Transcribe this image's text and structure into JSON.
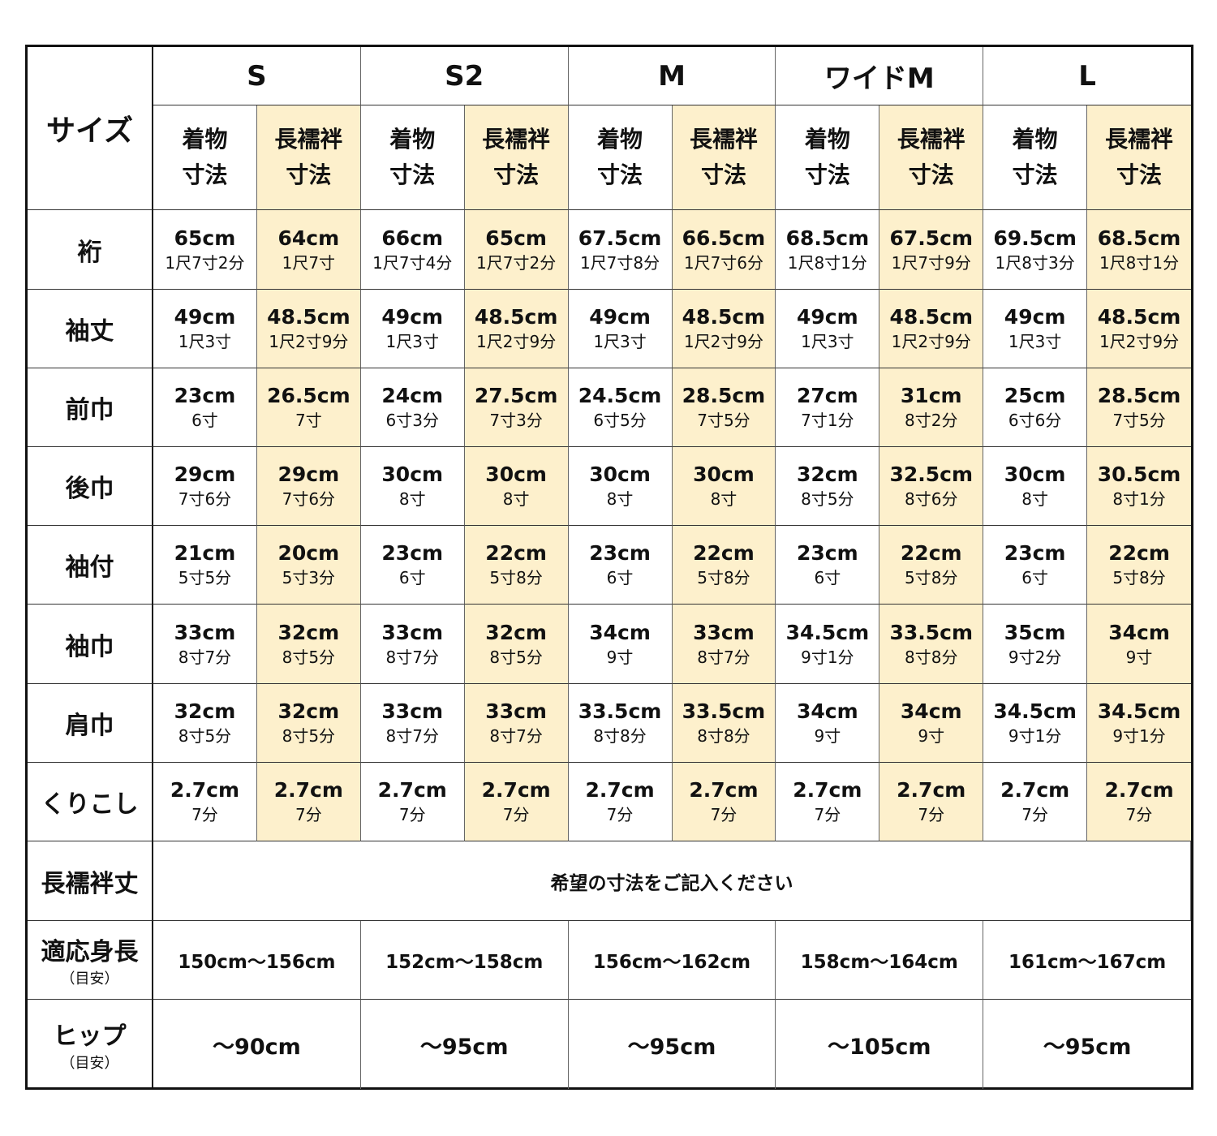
{
  "header": {
    "size_label": "サイズ",
    "sizes": [
      "S",
      "S2",
      "M",
      "ワイドM",
      "L"
    ],
    "sub_headers": [
      "着物\n寸法",
      "長襦袢\n寸法"
    ],
    "sub_header_lines": [
      [
        "着物",
        "寸法"
      ],
      [
        "長襦袢",
        "寸法"
      ]
    ]
  },
  "highlight_color": "#fdf0cc",
  "rows": [
    {
      "label": "裄",
      "cells": [
        [
          "65cm",
          "1尺7寸2分"
        ],
        [
          "64cm",
          "1尺7寸"
        ],
        [
          "66cm",
          "1尺7寸4分"
        ],
        [
          "65cm",
          "1尺7寸2分"
        ],
        [
          "67.5cm",
          "1尺7寸8分"
        ],
        [
          "66.5cm",
          "1尺7寸6分"
        ],
        [
          "68.5cm",
          "1尺8寸1分"
        ],
        [
          "67.5cm",
          "1尺7寸9分"
        ],
        [
          "69.5cm",
          "1尺8寸3分"
        ],
        [
          "68.5cm",
          "1尺8寸1分"
        ]
      ]
    },
    {
      "label": "袖丈",
      "cells": [
        [
          "49cm",
          "1尺3寸"
        ],
        [
          "48.5cm",
          "1尺2寸9分"
        ],
        [
          "49cm",
          "1尺3寸"
        ],
        [
          "48.5cm",
          "1尺2寸9分"
        ],
        [
          "49cm",
          "1尺3寸"
        ],
        [
          "48.5cm",
          "1尺2寸9分"
        ],
        [
          "49cm",
          "1尺3寸"
        ],
        [
          "48.5cm",
          "1尺2寸9分"
        ],
        [
          "49cm",
          "1尺3寸"
        ],
        [
          "48.5cm",
          "1尺2寸9分"
        ]
      ]
    },
    {
      "label": "前巾",
      "cells": [
        [
          "23cm",
          "6寸"
        ],
        [
          "26.5cm",
          "7寸"
        ],
        [
          "24cm",
          "6寸3分"
        ],
        [
          "27.5cm",
          "7寸3分"
        ],
        [
          "24.5cm",
          "6寸5分"
        ],
        [
          "28.5cm",
          "7寸5分"
        ],
        [
          "27cm",
          "7寸1分"
        ],
        [
          "31cm",
          "8寸2分"
        ],
        [
          "25cm",
          "6寸6分"
        ],
        [
          "28.5cm",
          "7寸5分"
        ]
      ]
    },
    {
      "label": "後巾",
      "cells": [
        [
          "29cm",
          "7寸6分"
        ],
        [
          "29cm",
          "7寸6分"
        ],
        [
          "30cm",
          "8寸"
        ],
        [
          "30cm",
          "8寸"
        ],
        [
          "30cm",
          "8寸"
        ],
        [
          "30cm",
          "8寸"
        ],
        [
          "32cm",
          "8寸5分"
        ],
        [
          "32.5cm",
          "8寸6分"
        ],
        [
          "30cm",
          "8寸"
        ],
        [
          "30.5cm",
          "8寸1分"
        ]
      ]
    },
    {
      "label": "袖付",
      "cells": [
        [
          "21cm",
          "5寸5分"
        ],
        [
          "20cm",
          "5寸3分"
        ],
        [
          "23cm",
          "6寸"
        ],
        [
          "22cm",
          "5寸8分"
        ],
        [
          "23cm",
          "6寸"
        ],
        [
          "22cm",
          "5寸8分"
        ],
        [
          "23cm",
          "6寸"
        ],
        [
          "22cm",
          "5寸8分"
        ],
        [
          "23cm",
          "6寸"
        ],
        [
          "22cm",
          "5寸8分"
        ]
      ]
    },
    {
      "label": "袖巾",
      "cells": [
        [
          "33cm",
          "8寸7分"
        ],
        [
          "32cm",
          "8寸5分"
        ],
        [
          "33cm",
          "8寸7分"
        ],
        [
          "32cm",
          "8寸5分"
        ],
        [
          "34cm",
          "9寸"
        ],
        [
          "33cm",
          "8寸7分"
        ],
        [
          "34.5cm",
          "9寸1分"
        ],
        [
          "33.5cm",
          "8寸8分"
        ],
        [
          "35cm",
          "9寸2分"
        ],
        [
          "34cm",
          "9寸"
        ]
      ]
    },
    {
      "label": "肩巾",
      "cells": [
        [
          "32cm",
          "8寸5分"
        ],
        [
          "32cm",
          "8寸5分"
        ],
        [
          "33cm",
          "8寸7分"
        ],
        [
          "33cm",
          "8寸7分"
        ],
        [
          "33.5cm",
          "8寸8分"
        ],
        [
          "33.5cm",
          "8寸8分"
        ],
        [
          "34cm",
          "9寸"
        ],
        [
          "34cm",
          "9寸"
        ],
        [
          "34.5cm",
          "9寸1分"
        ],
        [
          "34.5cm",
          "9寸1分"
        ]
      ]
    },
    {
      "label": "くりこし",
      "cells": [
        [
          "2.7cm",
          "7分"
        ],
        [
          "2.7cm",
          "7分"
        ],
        [
          "2.7cm",
          "7分"
        ],
        [
          "2.7cm",
          "7分"
        ],
        [
          "2.7cm",
          "7分"
        ],
        [
          "2.7cm",
          "7分"
        ],
        [
          "2.7cm",
          "7分"
        ],
        [
          "2.7cm",
          "7分"
        ],
        [
          "2.7cm",
          "7分"
        ],
        [
          "2.7cm",
          "7分"
        ]
      ]
    }
  ],
  "juban_length": {
    "label": "長襦袢丈",
    "text": "希望の寸法をご記入ください"
  },
  "height": {
    "label": "適応身長",
    "note": "（目安）",
    "values": [
      "150cm～156cm",
      "152cm～158cm",
      "156cm～162cm",
      "158cm～164cm",
      "161cm～167cm"
    ]
  },
  "hip": {
    "label": "ヒップ",
    "note": "（目安）",
    "values": [
      "～90cm",
      "～95cm",
      "～95cm",
      "～105cm",
      "～95cm"
    ]
  }
}
